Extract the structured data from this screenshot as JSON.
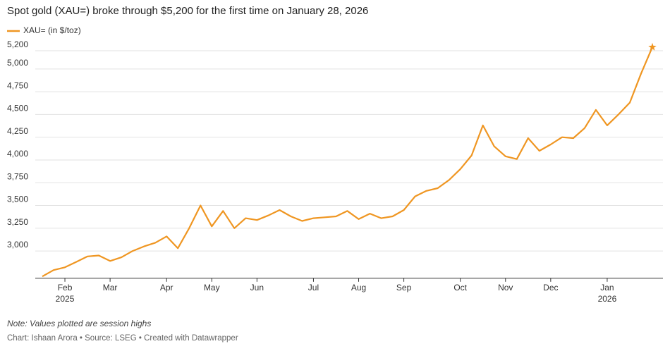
{
  "chart_data": {
    "type": "line",
    "title": "Spot gold (XAU=) broke through $5,200 for the first time on January 28, 2026",
    "note": "Note: Values plotted are session highs",
    "credit": "Chart: Ishaan Arora • Source: LSEG • Created with Datawrapper",
    "categories": [
      null,
      null,
      "Feb 2025",
      null,
      null,
      null,
      "Mar",
      null,
      null,
      null,
      null,
      "Apr",
      null,
      null,
      null,
      "May",
      null,
      null,
      null,
      "Jun",
      null,
      null,
      null,
      null,
      "Jul",
      null,
      null,
      null,
      "Aug",
      null,
      null,
      null,
      "Sep",
      null,
      null,
      null,
      null,
      "Oct",
      null,
      null,
      null,
      "Nov",
      null,
      null,
      null,
      "Dec",
      null,
      null,
      null,
      null,
      "Jan 2026",
      null,
      null,
      null,
      null
    ],
    "series": [
      {
        "name": "XAU= (in $/toz)",
        "color": "#ef9622",
        "values": [
          2720,
          2790,
          2820,
          2880,
          2940,
          2950,
          2890,
          2930,
          3000,
          3050,
          3090,
          3160,
          3030,
          3250,
          3500,
          3270,
          3440,
          3250,
          3360,
          3340,
          3390,
          3450,
          3380,
          3330,
          3360,
          3370,
          3380,
          3440,
          3350,
          3410,
          3360,
          3380,
          3450,
          3600,
          3660,
          3690,
          3780,
          3900,
          4050,
          4380,
          4150,
          4040,
          4010,
          4240,
          4100,
          4170,
          4250,
          4240,
          4350,
          4550,
          4380,
          4500,
          4630,
          4950,
          5240
        ]
      }
    ],
    "end_marker": "star",
    "ylim": [
      2700,
      5300
    ],
    "yticks": [
      {
        "value": 3000,
        "label": "3,000"
      },
      {
        "value": 3250,
        "label": "3,250"
      },
      {
        "value": 3500,
        "label": "3,500"
      },
      {
        "value": 3750,
        "label": "3,750"
      },
      {
        "value": 4000,
        "label": "4,000"
      },
      {
        "value": 4250,
        "label": "4,250"
      },
      {
        "value": 4500,
        "label": "4,500"
      },
      {
        "value": 4750,
        "label": "4,750"
      },
      {
        "value": 5000,
        "label": "5,000"
      },
      {
        "value": 5200,
        "label": "5,200"
      }
    ],
    "grid": true
  }
}
